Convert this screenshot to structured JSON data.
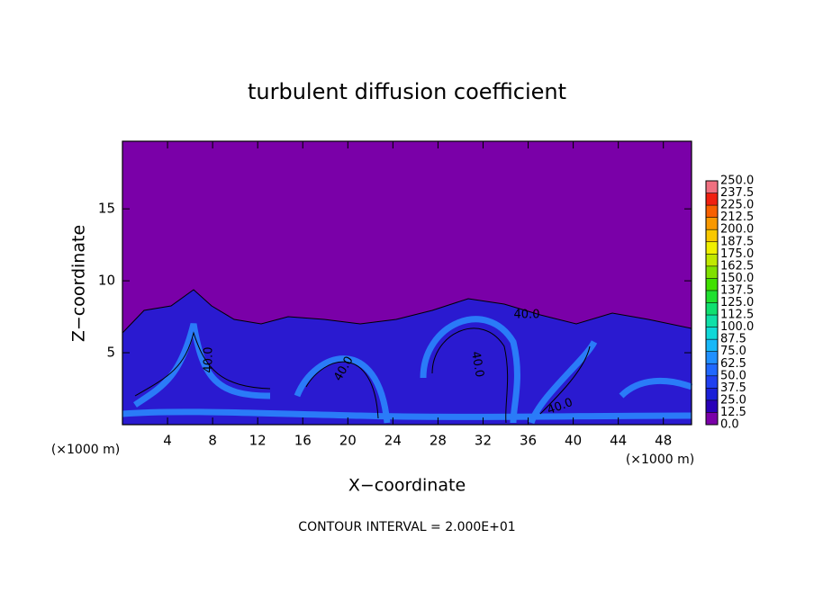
{
  "chart_data": {
    "type": "contour",
    "title": "turbulent diffusion coefficient",
    "x_label": "X−coordinate",
    "y_label": "Z−coordinate",
    "x_unit": "(×1000 m)",
    "x_unit_right": "(×1000 m)",
    "footer": "CONTOUR INTERVAL = 2.000E+01",
    "xlim": [
      0,
      50.5
    ],
    "ylim": [
      0,
      19.7
    ],
    "xticks": [
      4,
      8,
      12,
      16,
      20,
      24,
      28,
      32,
      36,
      40,
      44,
      48
    ],
    "yticks": [
      5,
      10,
      15
    ],
    "contour_labels": [
      "40.0",
      "40.0",
      "40.0",
      "40.0",
      "40.0"
    ],
    "colorbar": {
      "levels": [
        {
          "value": 0,
          "label": "0.0"
        },
        {
          "value": 12.5,
          "label": "12.5"
        },
        {
          "value": 25,
          "label": "25.0"
        },
        {
          "value": 37.5,
          "label": "37.5"
        },
        {
          "value": 50,
          "label": "50.0"
        },
        {
          "value": 62.5,
          "label": "62.5"
        },
        {
          "value": 75,
          "label": "75.0"
        },
        {
          "value": 87.5,
          "label": "87.5"
        },
        {
          "value": 100,
          "label": "100.0"
        },
        {
          "value": 112.5,
          "label": "112.5"
        },
        {
          "value": 125,
          "label": "125.0"
        },
        {
          "value": 137.5,
          "label": "137.5"
        },
        {
          "value": 150,
          "label": "150.0"
        },
        {
          "value": 162.5,
          "label": "162.5"
        },
        {
          "value": 175,
          "label": "175.0"
        },
        {
          "value": 187.5,
          "label": "187.5"
        },
        {
          "value": 200,
          "label": "200.0"
        },
        {
          "value": 212.5,
          "label": "212.5"
        },
        {
          "value": 225,
          "label": "225.0"
        },
        {
          "value": 237.5,
          "label": "237.5"
        },
        {
          "value": 250,
          "label": "250.0"
        }
      ],
      "colors": [
        "#7a00a8",
        "#2800b8",
        "#1a20d8",
        "#2040f0",
        "#2068ff",
        "#2090ff",
        "#18b8f8",
        "#10d8d8",
        "#10e0a8",
        "#10e070",
        "#20e030",
        "#40e000",
        "#80e000",
        "#c0e800",
        "#f0f000",
        "#f8c800",
        "#f89800",
        "#f86000",
        "#f02010",
        "#f07080"
      ]
    }
  }
}
